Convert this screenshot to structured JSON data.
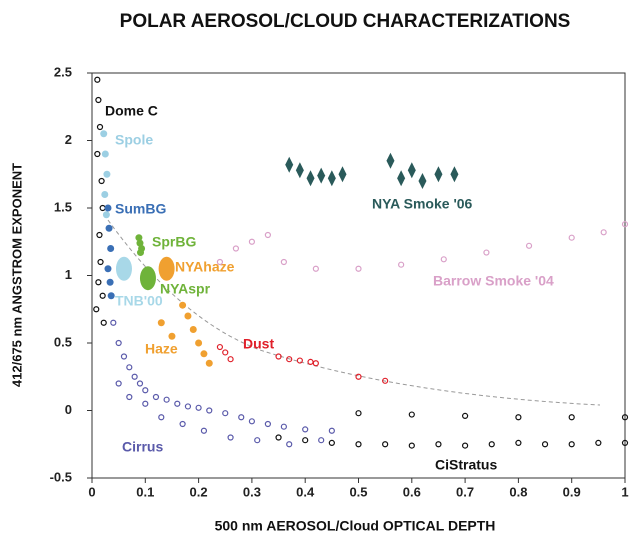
{
  "chart_data": {
    "type": "scatter",
    "title": "POLAR AEROSOL/CLOUD CHARACTERIZATIONS",
    "x_label": "500 nm AEROSOL/Cloud OPTICAL DEPTH",
    "y_label": "412/675 nm ANGSTROM EXPONENT",
    "xlim": [
      0,
      1
    ],
    "ylim": [
      -0.5,
      2.5
    ],
    "xticks": [
      0,
      0.1,
      0.2,
      0.3,
      0.4,
      0.5,
      0.6,
      0.7,
      0.8,
      0.9,
      1
    ],
    "yticks": [
      -0.5,
      0,
      0.5,
      1,
      1.5,
      2,
      2.5
    ],
    "grid": false,
    "series": [
      {
        "name": "Dome C",
        "color": "#111111",
        "marker": "open",
        "x": [
          0.01,
          0.012,
          0.015,
          0.01,
          0.018,
          0.02,
          0.014,
          0.016,
          0.012,
          0.02,
          0.008,
          0.022
        ],
        "y": [
          2.45,
          2.3,
          2.1,
          1.9,
          1.7,
          1.5,
          1.3,
          1.1,
          0.95,
          0.85,
          0.75,
          0.65
        ]
      },
      {
        "name": "Spole",
        "color": "#9ccfe3",
        "marker": "filled",
        "x": [
          0.022,
          0.025,
          0.028,
          0.024,
          0.027
        ],
        "y": [
          2.05,
          1.9,
          1.75,
          1.6,
          1.45
        ]
      },
      {
        "name": "SumBG",
        "color": "#3a6fb5",
        "marker": "filled",
        "x": [
          0.03,
          0.032,
          0.035,
          0.03,
          0.034,
          0.036
        ],
        "y": [
          1.5,
          1.35,
          1.2,
          1.05,
          0.95,
          0.85
        ]
      },
      {
        "name": "SprBG",
        "color": "#6fb33a",
        "marker": "filled",
        "x": [
          0.088,
          0.09,
          0.093,
          0.091
        ],
        "y": [
          1.28,
          1.24,
          1.2,
          1.17
        ]
      },
      {
        "name": "NYAhaze",
        "color": "#f0a030",
        "marker": "ellipse",
        "x": [
          0.14
        ],
        "y": [
          1.05
        ]
      },
      {
        "name": "NYAspr",
        "color": "#6fb33a",
        "marker": "ellipse",
        "x": [
          0.105
        ],
        "y": [
          0.98
        ]
      },
      {
        "name": "TNB'00",
        "color": "#a8d8e8",
        "marker": "ellipse",
        "x": [
          0.06
        ],
        "y": [
          1.05
        ]
      },
      {
        "name": "Haze",
        "color": "#f0a030",
        "marker": "filled",
        "x": [
          0.17,
          0.18,
          0.19,
          0.2,
          0.21,
          0.22,
          0.15,
          0.13
        ],
        "y": [
          0.78,
          0.7,
          0.6,
          0.5,
          0.42,
          0.35,
          0.55,
          0.65
        ]
      },
      {
        "name": "Dust",
        "color": "#e0202a",
        "marker": "open",
        "x": [
          0.24,
          0.25,
          0.26,
          0.35,
          0.37,
          0.39,
          0.41,
          0.42,
          0.5,
          0.55
        ],
        "y": [
          0.47,
          0.43,
          0.38,
          0.4,
          0.38,
          0.37,
          0.36,
          0.35,
          0.25,
          0.22
        ]
      },
      {
        "name": "NYA Smoke '06",
        "color": "#2a5a5a",
        "marker": "diamond",
        "x": [
          0.37,
          0.39,
          0.41,
          0.43,
          0.45,
          0.47,
          0.56,
          0.58,
          0.6,
          0.62,
          0.65,
          0.68
        ],
        "y": [
          1.82,
          1.78,
          1.72,
          1.74,
          1.72,
          1.75,
          1.85,
          1.72,
          1.78,
          1.7,
          1.75,
          1.75
        ]
      },
      {
        "name": "Barrow Smoke '04",
        "color": "#d9a0c8",
        "marker": "open",
        "x": [
          0.24,
          0.27,
          0.3,
          0.33,
          0.36,
          0.42,
          0.5,
          0.58,
          0.66,
          0.74,
          0.82,
          0.9,
          0.96,
          1.0
        ],
        "y": [
          1.1,
          1.2,
          1.25,
          1.3,
          1.1,
          1.05,
          1.05,
          1.08,
          1.12,
          1.17,
          1.22,
          1.28,
          1.32,
          1.38
        ]
      },
      {
        "name": "Cirrus",
        "color": "#5a5aaa",
        "marker": "open",
        "x": [
          0.04,
          0.05,
          0.06,
          0.07,
          0.08,
          0.09,
          0.1,
          0.12,
          0.14,
          0.16,
          0.18,
          0.2,
          0.22,
          0.25,
          0.28,
          0.3,
          0.33,
          0.36,
          0.4,
          0.45,
          0.05,
          0.07,
          0.1,
          0.13,
          0.17,
          0.21,
          0.26,
          0.31,
          0.37,
          0.43
        ],
        "y": [
          0.65,
          0.5,
          0.4,
          0.32,
          0.25,
          0.2,
          0.15,
          0.1,
          0.08,
          0.05,
          0.03,
          0.02,
          0.0,
          -0.02,
          -0.05,
          -0.08,
          -0.1,
          -0.12,
          -0.14,
          -0.15,
          0.2,
          0.1,
          0.05,
          -0.05,
          -0.1,
          -0.15,
          -0.2,
          -0.22,
          -0.25,
          -0.22
        ]
      },
      {
        "name": "CiStratus",
        "color": "#111111",
        "marker": "open",
        "x": [
          0.35,
          0.4,
          0.45,
          0.5,
          0.55,
          0.6,
          0.65,
          0.7,
          0.75,
          0.8,
          0.85,
          0.9,
          0.95,
          1.0,
          0.5,
          0.6,
          0.7,
          0.8,
          0.9,
          1.0
        ],
        "y": [
          -0.2,
          -0.22,
          -0.24,
          -0.25,
          -0.25,
          -0.26,
          -0.25,
          -0.26,
          -0.25,
          -0.24,
          -0.25,
          -0.25,
          -0.24,
          -0.24,
          -0.02,
          -0.03,
          -0.04,
          -0.05,
          -0.05,
          -0.05
        ]
      }
    ]
  }
}
